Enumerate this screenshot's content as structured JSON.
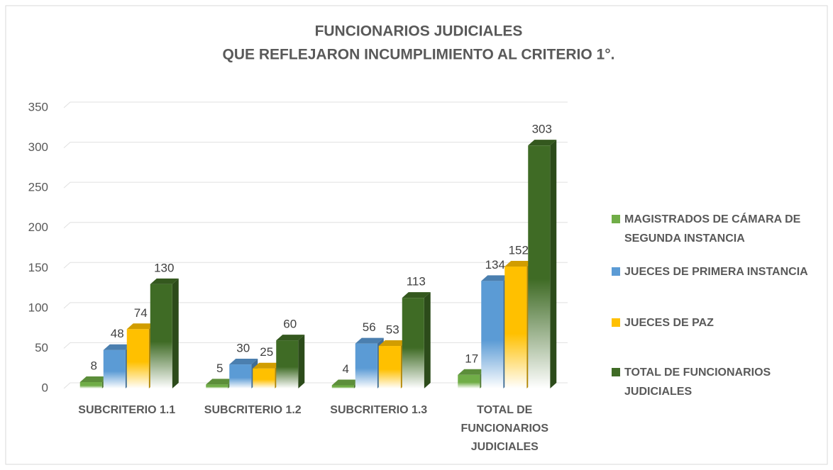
{
  "chart_data": {
    "type": "bar3d",
    "title": [
      "FUNCIONARIOS JUDICIALES",
      "QUE REFLEJARON INCUMPLIMIENTO AL CRITERIO 1°."
    ],
    "categories": [
      "SUBCRITERIO 1.1",
      "SUBCRITERIO 1.2",
      "SUBCRITERIO 1.3",
      "TOTAL DE FUNCIONARIOS JUDICIALES"
    ],
    "series": [
      {
        "name": "MAGISTRADOS DE CÁMARA DE SEGUNDA INSTANCIA",
        "color": "#70ad47",
        "values": [
          8,
          5,
          4,
          17
        ]
      },
      {
        "name": "JUECES DE PRIMERA INSTANCIA",
        "color": "#5b9bd5",
        "values": [
          48,
          30,
          56,
          134
        ]
      },
      {
        "name": "JUECES DE PAZ",
        "color": "#ffc000",
        "values": [
          74,
          25,
          53,
          152
        ]
      },
      {
        "name": "TOTAL DE FUNCIONARIOS JUDICIALES",
        "color": "#3f6b25",
        "values": [
          130,
          60,
          113,
          303
        ]
      }
    ],
    "ylim": [
      0,
      350
    ],
    "yticks": [
      0,
      50,
      100,
      150,
      200,
      250,
      300,
      350
    ],
    "grid": true,
    "legend": "right"
  }
}
